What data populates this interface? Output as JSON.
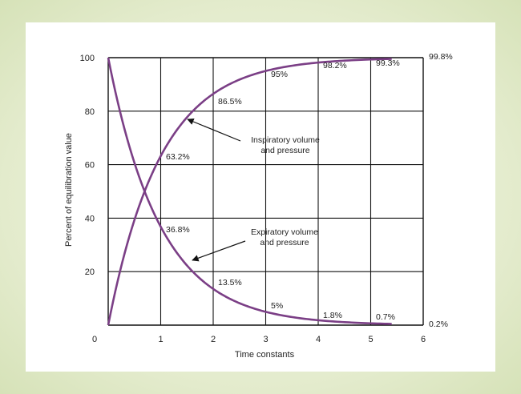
{
  "chart_data": {
    "type": "line",
    "xlabel": "Time constants",
    "ylabel": "Percent of equilibration value",
    "xlim": [
      0,
      6
    ],
    "ylim": [
      0,
      100
    ],
    "x_ticks": [
      "0",
      "1",
      "2",
      "3",
      "4",
      "5",
      "6"
    ],
    "y_ticks": [
      "20",
      "40",
      "60",
      "80",
      "100"
    ],
    "grid": true,
    "series": [
      {
        "name": "Inspiratory volume and pressure",
        "x": [
          0,
          1,
          2,
          3,
          4,
          5,
          5.4
        ],
        "values": [
          0,
          63.2,
          86.5,
          95,
          98.2,
          99.3,
          99.8
        ]
      },
      {
        "name": "Expiratory volume and pressure",
        "x": [
          0,
          1,
          2,
          3,
          4,
          5,
          5.4
        ],
        "values": [
          100,
          36.8,
          13.5,
          5,
          1.8,
          0.7,
          0.2
        ]
      }
    ],
    "data_labels": {
      "inspiratory": [
        "63.2%",
        "86.5%",
        "95%",
        "98.2%",
        "99.3%",
        "99.8%"
      ],
      "expiratory": [
        "36.8%",
        "13.5%",
        "5%",
        "1.8%",
        "0.7%",
        "0.2%"
      ]
    },
    "annotations": [
      {
        "text_line1": "Inspiratory volume",
        "text_line2": "and pressure"
      },
      {
        "text_line1": "Expiratory volume",
        "text_line2": "and pressure"
      }
    ],
    "colors": {
      "curve": "#7b3f86",
      "grid": "#111111"
    }
  }
}
